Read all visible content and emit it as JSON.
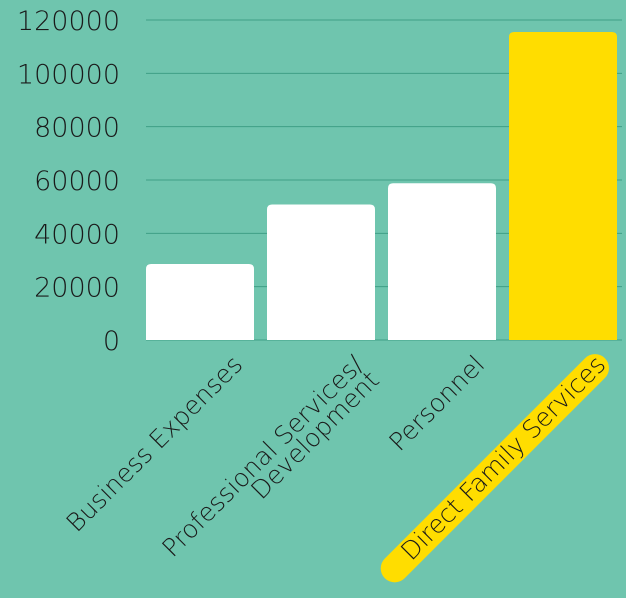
{
  "chart_data": {
    "type": "bar",
    "categories": [
      "Business Expenses",
      "Professional Services/ Development",
      "Personnel",
      "Direct Family Services"
    ],
    "category_lines": [
      [
        "Business Expenses"
      ],
      [
        "Professional Services/",
        "Development"
      ],
      [
        "Personnel"
      ],
      [
        "Direct Family Services"
      ]
    ],
    "values": [
      28500,
      50800,
      58800,
      115500
    ],
    "ylim": [
      0,
      120000
    ],
    "yticks": [
      0,
      20000,
      40000,
      60000,
      80000,
      100000,
      120000
    ],
    "grid": true,
    "title": "",
    "xlabel": "",
    "ylabel": "",
    "bar_colors": [
      "#ffffff",
      "#ffffff",
      "#ffffff",
      "#ffdd00"
    ],
    "highlight_color": "#ffdd00",
    "highlight_index": 3,
    "background_color": "#6fc5ae",
    "grid_color": "#3f9f86"
  }
}
